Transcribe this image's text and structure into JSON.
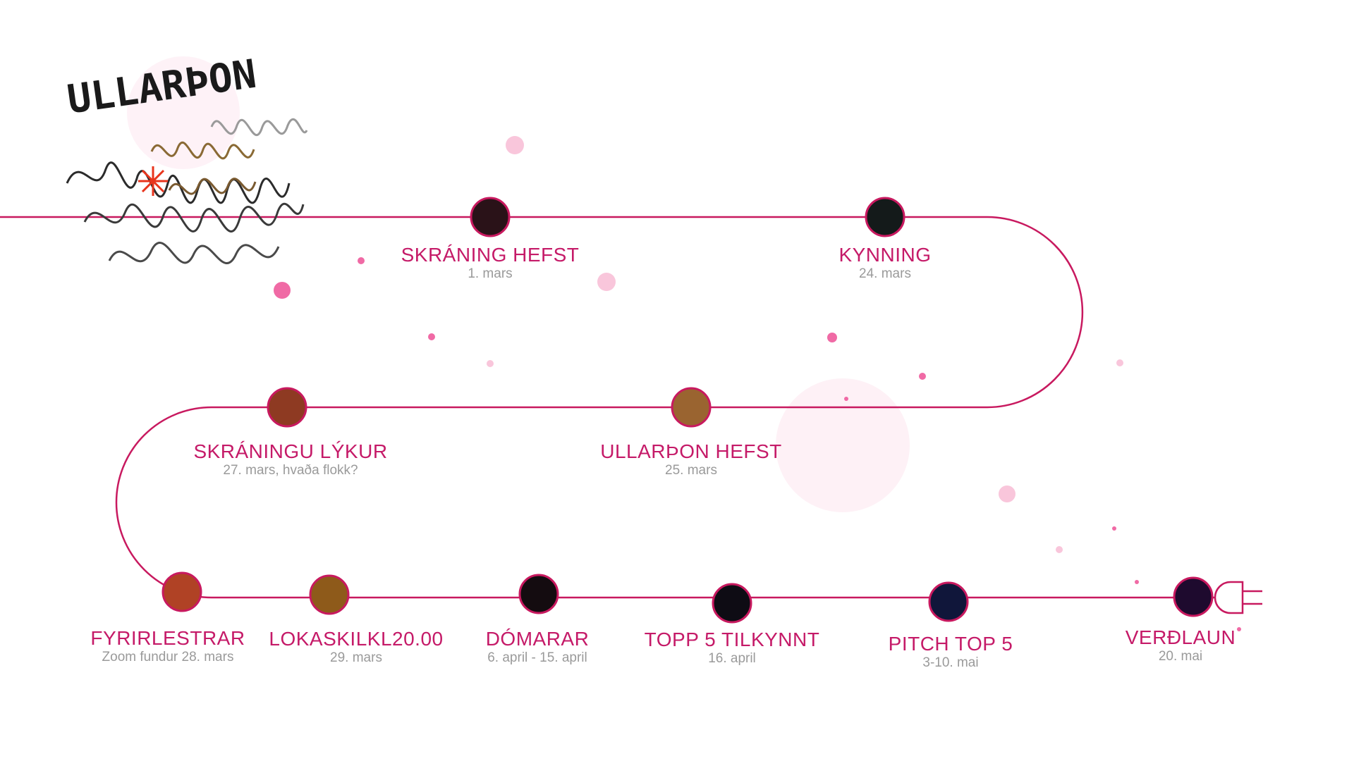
{
  "logo": {
    "text": "ULLARÞON",
    "icon": "wool-iceland-map-icon"
  },
  "timeline": {
    "line_color": "#c8195f",
    "title_color": "#c51a68",
    "date_color": "#9a9a9a",
    "milestones": [
      {
        "id": "skraning-hefst",
        "title": "SKRÁNING HEFST",
        "date": "1. mars",
        "color": "#2a1218"
      },
      {
        "id": "kynning",
        "title": "KYNNING",
        "date": "24. mars",
        "color": "#141a1a"
      },
      {
        "id": "ullarthon-hefst",
        "title": "ULLARÞON HEFST",
        "date": "25. mars",
        "color": "#9a6430"
      },
      {
        "id": "skraningu-lykur",
        "title": "SKRÁNINGU LÝKUR",
        "date": "27. mars, hvaða flokk?",
        "color": "#8e3a22"
      },
      {
        "id": "fyrirlestrar",
        "title": "FYRIRLESTRAR",
        "date": "Zoom fundur 28. mars",
        "color": "#b04225"
      },
      {
        "id": "lokaskil",
        "title": "LOKASKILKL20.00",
        "date": "29. mars",
        "color": "#8e5a1a"
      },
      {
        "id": "domarar",
        "title": "DÓMARAR",
        "date": "6. april - 15. april",
        "color": "#140c10"
      },
      {
        "id": "topp5",
        "title": "TOPP 5 TILKYNNT",
        "date": "16. april",
        "color": "#0e0c14"
      },
      {
        "id": "pitch",
        "title": "PITCH TOP 5",
        "date": "3-10. mai",
        "color": "#10163a"
      },
      {
        "id": "verdlaun",
        "title": "VERÐLAUN",
        "date": "20. mai",
        "color": "#1e0a2e"
      }
    ]
  }
}
